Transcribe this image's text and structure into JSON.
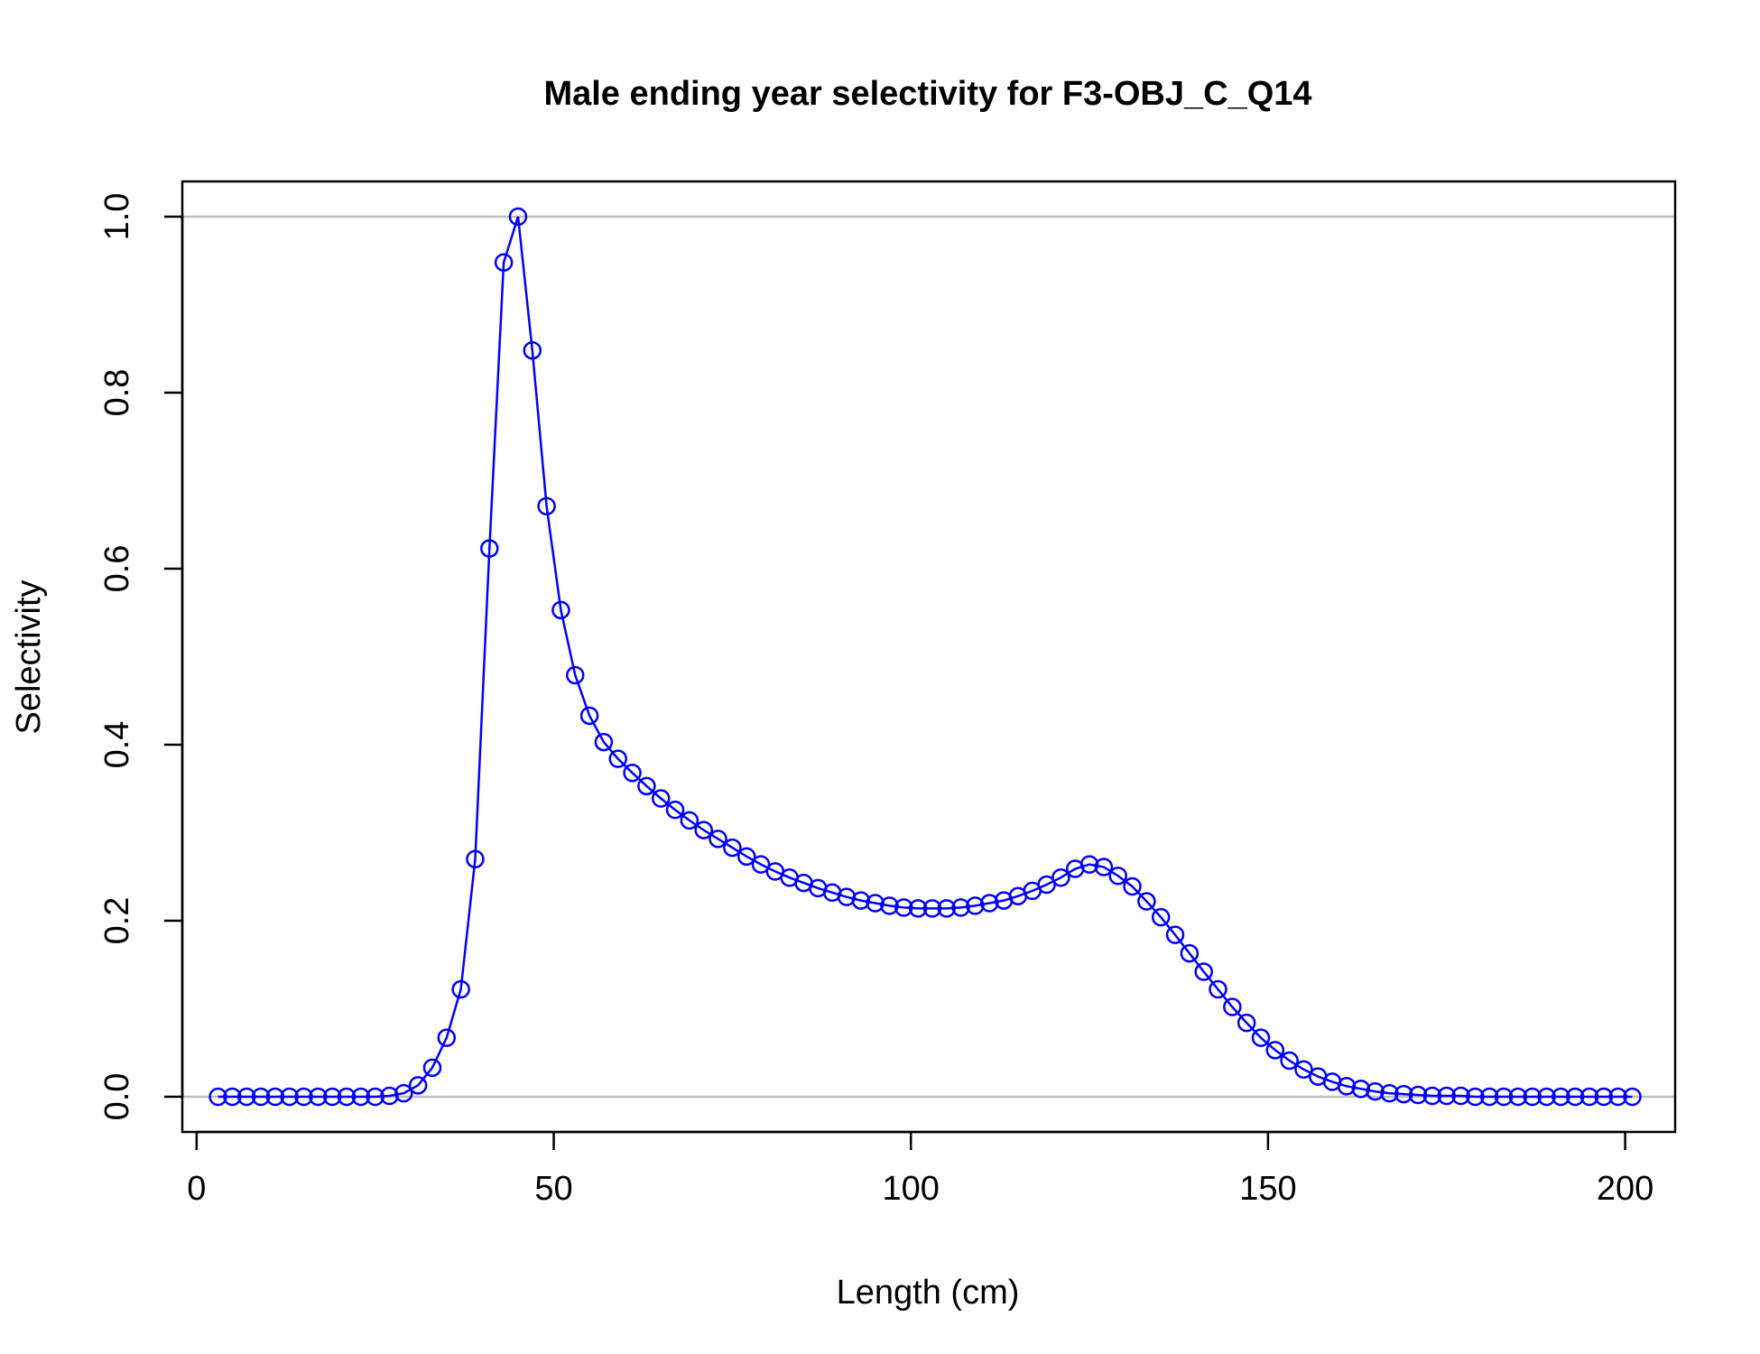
{
  "chart_data": {
    "type": "line",
    "title": "Male ending year selectivity for F3-OBJ_C_Q14",
    "xlabel": "Length (cm)",
    "ylabel": "Selectivity",
    "xlim": [
      -2,
      207
    ],
    "ylim": [
      -0.04,
      1.04
    ],
    "xticks": [
      0,
      50,
      100,
      150,
      200
    ],
    "xtick_labels": [
      "0",
      "50",
      "100",
      "150",
      "200"
    ],
    "yticks": [
      0,
      0.2,
      0.4,
      0.6,
      0.8,
      1
    ],
    "ytick_labels": [
      "0.0",
      "0.2",
      "0.4",
      "0.6",
      "0.8",
      "1.0"
    ],
    "reference_lines": [
      0,
      1
    ],
    "grid": false,
    "legend": "none",
    "colors": {
      "series": "#0000ff",
      "reference": "#bebebe",
      "axis": "#000000"
    },
    "series": [
      {
        "marker": "open-circle",
        "x": [
          3,
          5,
          7,
          9,
          11,
          13,
          15,
          17,
          19,
          21,
          23,
          25,
          27,
          29,
          31,
          33,
          35,
          37,
          39,
          41,
          43,
          45,
          47,
          49,
          51,
          53,
          55,
          57,
          59,
          61,
          63,
          65,
          67,
          69,
          71,
          73,
          75,
          77,
          79,
          81,
          83,
          85,
          87,
          89,
          91,
          93,
          95,
          97,
          99,
          101,
          103,
          105,
          107,
          109,
          111,
          113,
          115,
          117,
          119,
          121,
          123,
          125,
          127,
          129,
          131,
          133,
          135,
          137,
          139,
          141,
          143,
          145,
          147,
          149,
          151,
          153,
          155,
          157,
          159,
          161,
          163,
          165,
          167,
          169,
          171,
          173,
          175,
          177,
          179,
          181,
          183,
          185,
          187,
          189,
          191,
          193,
          195,
          197,
          199,
          201
        ],
        "y": [
          0,
          0,
          0,
          0,
          0,
          0,
          0,
          0,
          0,
          0,
          0,
          0,
          0.001,
          0.004,
          0.013,
          0.033,
          0.067,
          0.122,
          0.27,
          0.623,
          0.948,
          1.0,
          0.848,
          0.671,
          0.553,
          0.479,
          0.433,
          0.403,
          0.384,
          0.368,
          0.353,
          0.339,
          0.326,
          0.314,
          0.303,
          0.293,
          0.283,
          0.273,
          0.264,
          0.256,
          0.249,
          0.243,
          0.237,
          0.232,
          0.227,
          0.223,
          0.22,
          0.217,
          0.215,
          0.214,
          0.214,
          0.214,
          0.215,
          0.217,
          0.22,
          0.223,
          0.228,
          0.234,
          0.241,
          0.249,
          0.259,
          0.264,
          0.261,
          0.251,
          0.239,
          0.222,
          0.204,
          0.184,
          0.163,
          0.142,
          0.122,
          0.102,
          0.084,
          0.067,
          0.053,
          0.041,
          0.031,
          0.023,
          0.017,
          0.012,
          0.009,
          0.006,
          0.004,
          0.003,
          0.002,
          0.001,
          0.001,
          0.001,
          0,
          0,
          0,
          0,
          0,
          0,
          0,
          0,
          0,
          0,
          0,
          0
        ]
      }
    ]
  }
}
